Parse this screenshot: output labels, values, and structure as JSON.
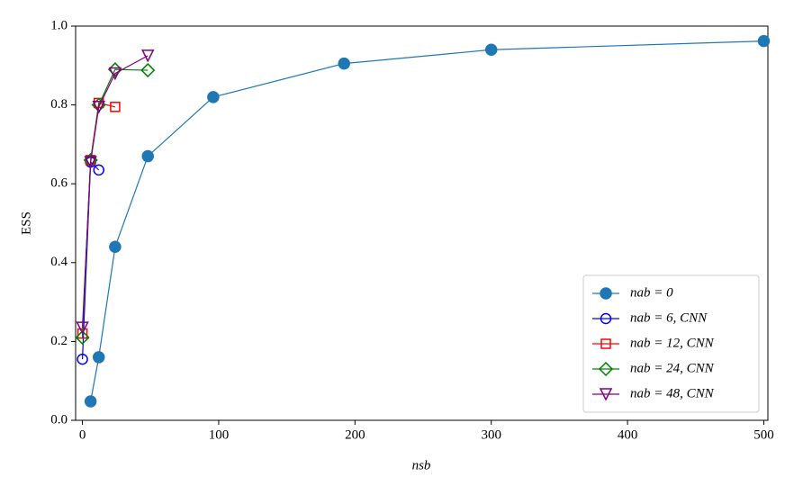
{
  "chart_data": {
    "type": "line",
    "xlabel": "nsb",
    "ylabel": "ESS",
    "xlim": [
      -5,
      503
    ],
    "ylim": [
      0,
      1.0
    ],
    "xticks": [
      0,
      100,
      200,
      300,
      400,
      500
    ],
    "yticks": [
      {
        "value": 0,
        "label": "0.0"
      },
      0.2,
      0.4,
      0.6,
      0.8,
      {
        "value": 1,
        "label": "1.0"
      }
    ],
    "legend": "lower right",
    "series": [
      {
        "name": "nab = 0",
        "color": "#1f77b4",
        "marker": "o",
        "filled": true,
        "x": [
          6,
          12,
          24,
          48,
          96,
          192,
          300,
          500
        ],
        "values": [
          0.048,
          0.16,
          0.44,
          0.67,
          0.82,
          0.905,
          0.94,
          0.962
        ]
      },
      {
        "name": "nab = 6, CNN",
        "color": "#0000ff",
        "marker": "o",
        "filled": false,
        "x": [
          0,
          6,
          12
        ],
        "values": [
          0.155,
          0.655,
          0.635
        ]
      },
      {
        "name": "nab = 12, CNN",
        "color": "#ff0000",
        "marker": "s",
        "filled": false,
        "x": [
          0,
          6,
          12,
          24
        ],
        "values": [
          0.22,
          0.66,
          0.805,
          0.795
        ]
      },
      {
        "name": "nab = 24, CNN",
        "color": "#008000",
        "marker": "D",
        "filled": false,
        "x": [
          0,
          6,
          12,
          24,
          48
        ],
        "values": [
          0.21,
          0.66,
          0.8,
          0.89,
          0.888
        ]
      },
      {
        "name": "nab = 48, CNN",
        "color": "#800080",
        "marker": "v",
        "filled": false,
        "x": [
          0,
          6,
          12,
          24,
          48
        ],
        "values": [
          0.235,
          0.655,
          0.795,
          0.88,
          0.925
        ]
      }
    ]
  }
}
